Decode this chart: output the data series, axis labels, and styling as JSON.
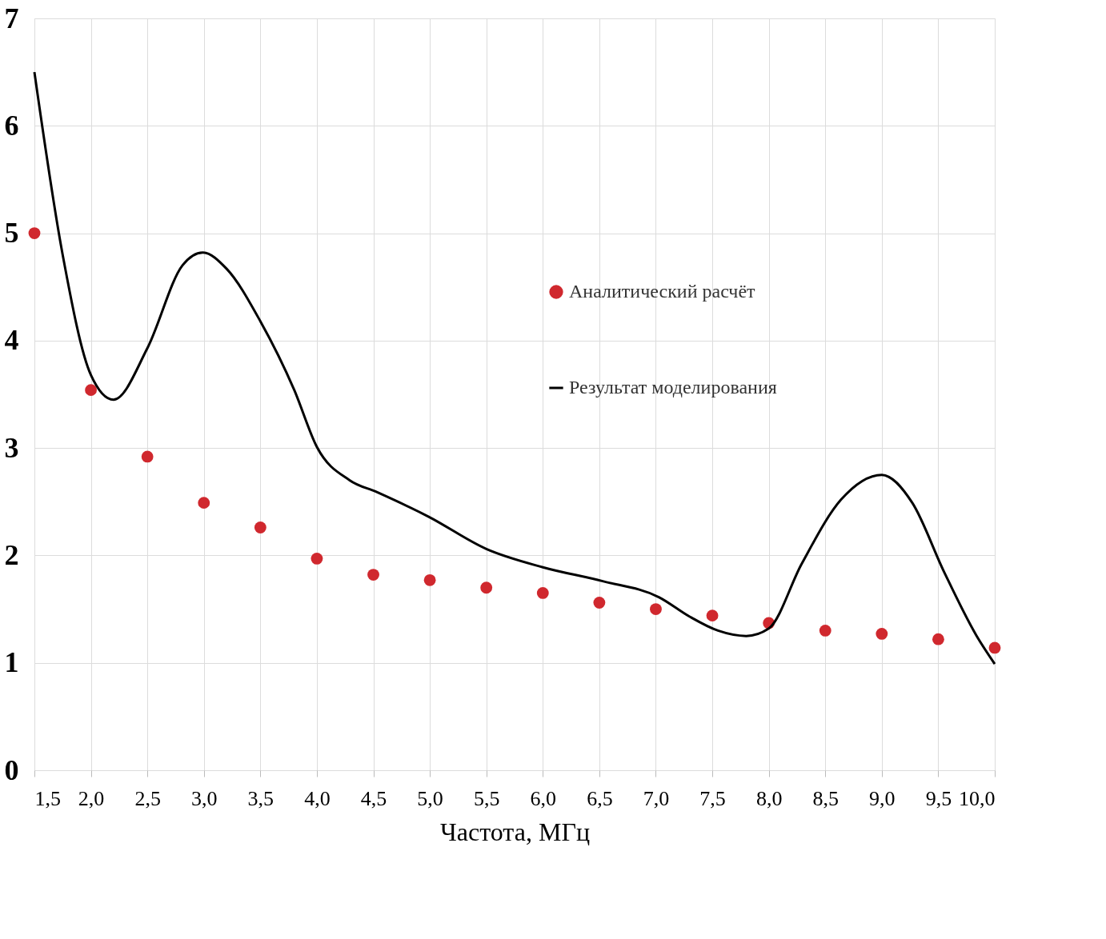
{
  "chart_data": {
    "type": "scatter",
    "xlabel": "Частота, МГц",
    "xlim": [
      1.5,
      10.0
    ],
    "ylim": [
      0,
      7
    ],
    "xticks": [
      {
        "value": 1.5,
        "label": "1,5"
      },
      {
        "value": 2.0,
        "label": "2,0"
      },
      {
        "value": 2.5,
        "label": "2,5"
      },
      {
        "value": 3.0,
        "label": "3,0"
      },
      {
        "value": 3.5,
        "label": "3,5"
      },
      {
        "value": 4.0,
        "label": "4,0"
      },
      {
        "value": 4.5,
        "label": "4,5"
      },
      {
        "value": 5.0,
        "label": "5,0"
      },
      {
        "value": 5.5,
        "label": "5,5"
      },
      {
        "value": 6.0,
        "label": "6,0"
      },
      {
        "value": 6.5,
        "label": "6,5"
      },
      {
        "value": 7.0,
        "label": "7,0"
      },
      {
        "value": 7.5,
        "label": "7,5"
      },
      {
        "value": 8.0,
        "label": "8,0"
      },
      {
        "value": 8.5,
        "label": "8,5"
      },
      {
        "value": 9.0,
        "label": "9,0"
      },
      {
        "value": 9.5,
        "label": "9,5"
      },
      {
        "value": 10.0,
        "label": "10,0"
      }
    ],
    "yticks": [
      0,
      1,
      2,
      3,
      4,
      5,
      6,
      7
    ],
    "grid": true,
    "legend": "center",
    "series": [
      {
        "name": "Аналитический расчёт",
        "marker": "circle",
        "color": "#d0282e",
        "x": [
          1.5,
          2.0,
          2.5,
          3.0,
          3.5,
          4.0,
          4.5,
          5.0,
          5.5,
          6.0,
          6.5,
          7.0,
          7.5,
          8.0,
          8.5,
          9.0,
          9.5,
          10.0
        ],
        "values": [
          5.0,
          3.54,
          2.92,
          2.49,
          2.26,
          1.97,
          1.82,
          1.77,
          1.7,
          1.65,
          1.56,
          1.5,
          1.44,
          1.37,
          1.3,
          1.27,
          1.22,
          1.14
        ]
      },
      {
        "name": "Результат моделирования",
        "type": "line",
        "line_style": "solid",
        "color": "#000000",
        "x": [
          1.5,
          1.75,
          2.0,
          2.2,
          2.5,
          2.81,
          2.99,
          3.2,
          3.5,
          3.8,
          4.0,
          4.29,
          4.53,
          4.99,
          5.5,
          6.0,
          6.53,
          7.03,
          7.3,
          7.55,
          7.8,
          8.0,
          8.29,
          8.64,
          9.0,
          9.27,
          9.55,
          9.84,
          10.0
        ],
        "values": [
          6.5,
          4.8,
          3.68,
          3.45,
          3.93,
          4.7,
          4.82,
          4.67,
          4.18,
          3.54,
          3.01,
          2.7,
          2.59,
          2.36,
          2.06,
          1.89,
          1.76,
          1.61,
          1.43,
          1.3,
          1.25,
          1.32,
          1.92,
          2.52,
          2.75,
          2.49,
          1.85,
          1.25,
          0.99
        ]
      }
    ]
  }
}
